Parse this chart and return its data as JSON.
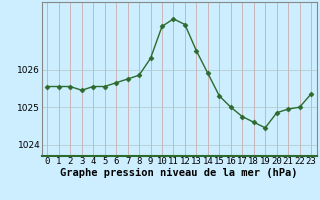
{
  "x": [
    0,
    1,
    2,
    3,
    4,
    5,
    6,
    7,
    8,
    9,
    10,
    11,
    12,
    13,
    14,
    15,
    16,
    17,
    18,
    19,
    20,
    21,
    22,
    23
  ],
  "y": [
    1025.55,
    1025.55,
    1025.55,
    1025.45,
    1025.55,
    1025.55,
    1025.65,
    1025.75,
    1025.85,
    1026.3,
    1027.15,
    1027.35,
    1027.2,
    1026.5,
    1025.9,
    1025.3,
    1025.0,
    1024.75,
    1024.6,
    1024.45,
    1024.85,
    1024.95,
    1025.0,
    1025.35
  ],
  "line_color": "#2d6a2d",
  "marker": "D",
  "marker_size": 2.5,
  "bg_color": "#cceeff",
  "grid_color_v": "#b0c8c8",
  "grid_color_h": "#b0c8c8",
  "xlabel": "Graphe pression niveau de la mer (hPa)",
  "xlabel_fontsize": 7.5,
  "yticks": [
    1024,
    1025,
    1026
  ],
  "ylim": [
    1023.7,
    1027.8
  ],
  "xlim": [
    -0.5,
    23.5
  ],
  "tick_fontsize": 6.5,
  "bottom_color": "#4a7a4a"
}
